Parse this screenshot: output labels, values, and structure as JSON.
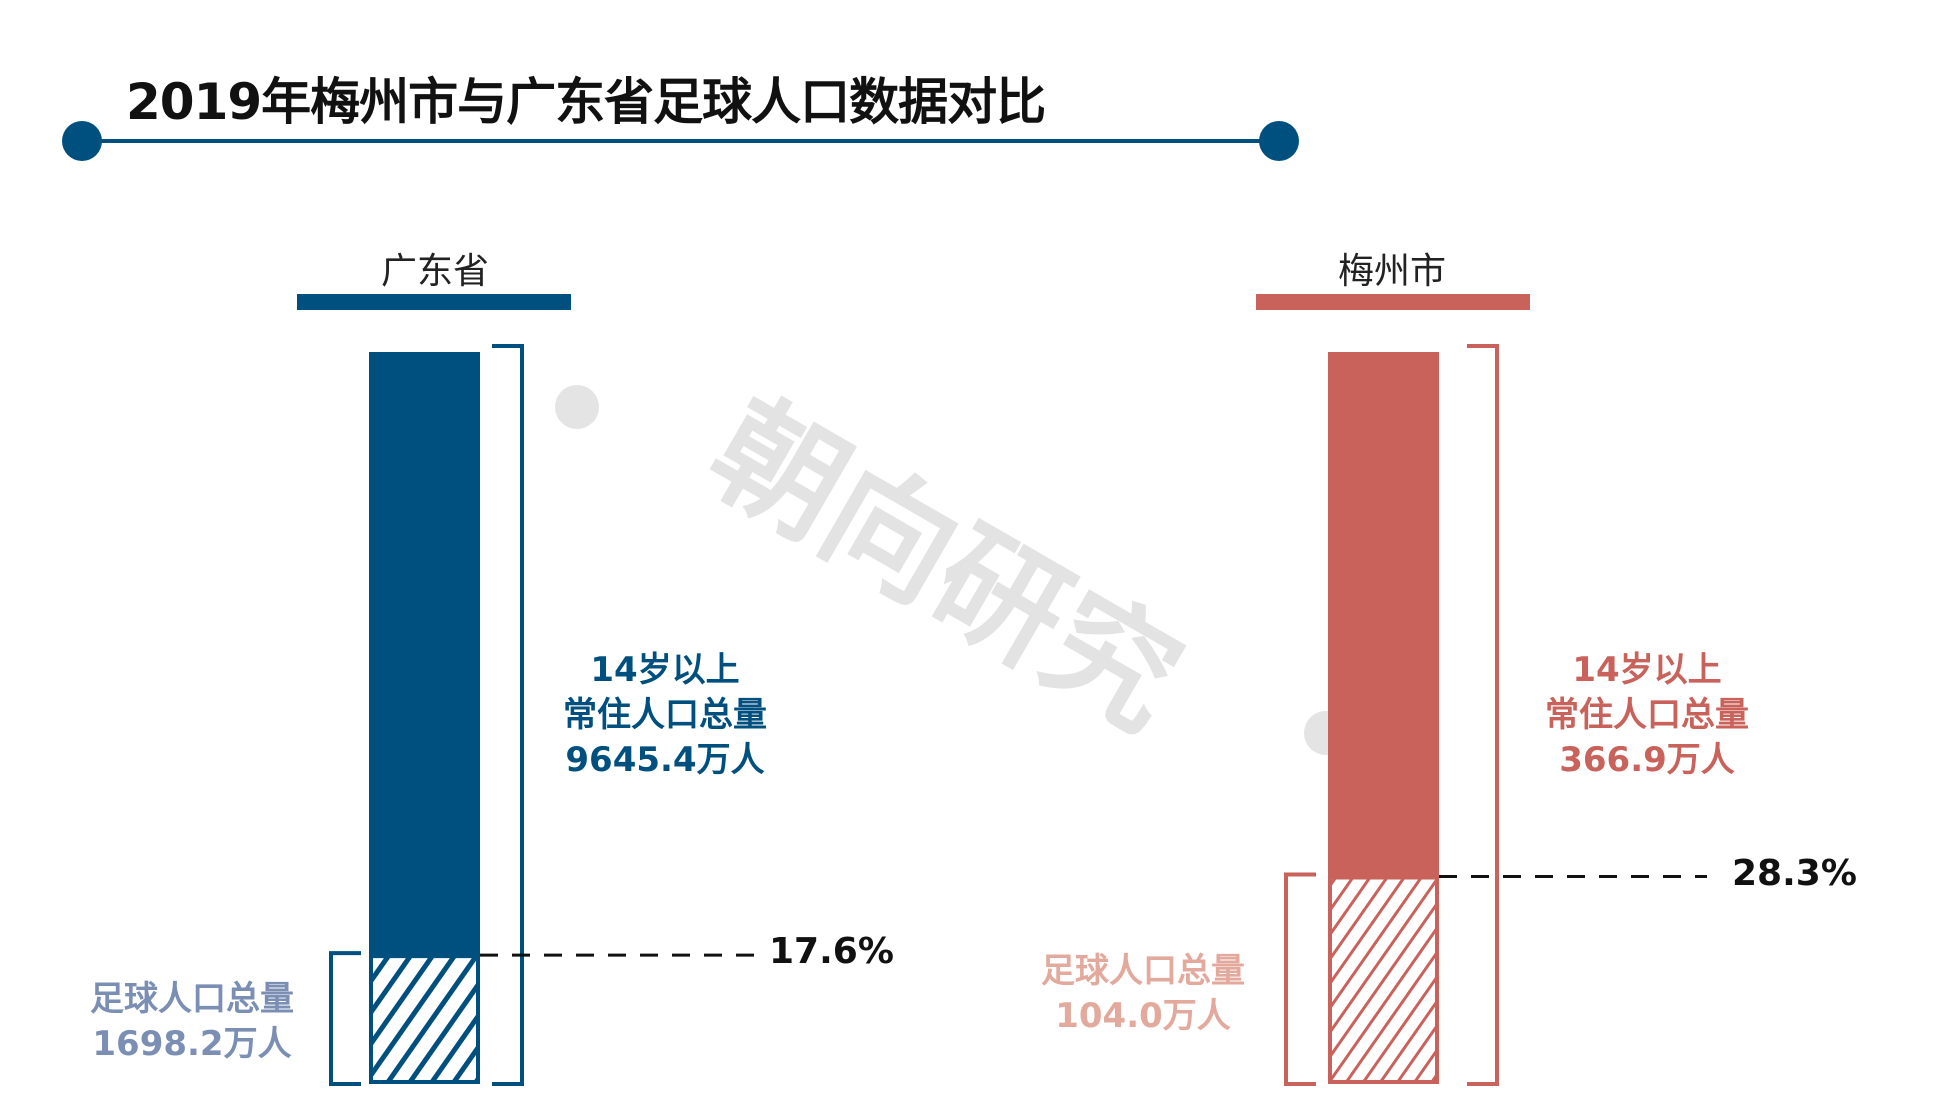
{
  "title": "2019年梅州市与广东省足球人口数据对比",
  "watermark": "朝向研究",
  "colors": {
    "guangdong": "#00507f",
    "meizhou": "#c8625a",
    "guangdong_light": "#7b8fb5",
    "meizhou_light": "#e2a99c",
    "title_line": "#00507f"
  },
  "chart_data": {
    "type": "bar",
    "categories": [
      "广东省",
      "梅州市"
    ],
    "series": [
      {
        "name": "14岁以上常住人口总量",
        "values": [
          9645.4,
          366.9
        ]
      },
      {
        "name": "足球人口总量",
        "values": [
          1698.2,
          104.0
        ]
      }
    ],
    "percentages": [
      "17.6%",
      "28.3%"
    ],
    "unit": "万人",
    "labels": {
      "guangdong": {
        "category": "广东省",
        "total_line1": "14岁以上",
        "total_line2": "常住人口总量",
        "total_line3": "9645.4万人",
        "football_line1": "足球人口总量",
        "football_line2": "1698.2万人",
        "percent": "17.6%"
      },
      "meizhou": {
        "category": "梅州市",
        "total_line1": "14岁以上",
        "total_line2": "常住人口总量",
        "total_line3": "366.9万人",
        "football_line1": "足球人口总量",
        "football_line2": "104.0万人",
        "percent": "28.3%"
      }
    }
  }
}
